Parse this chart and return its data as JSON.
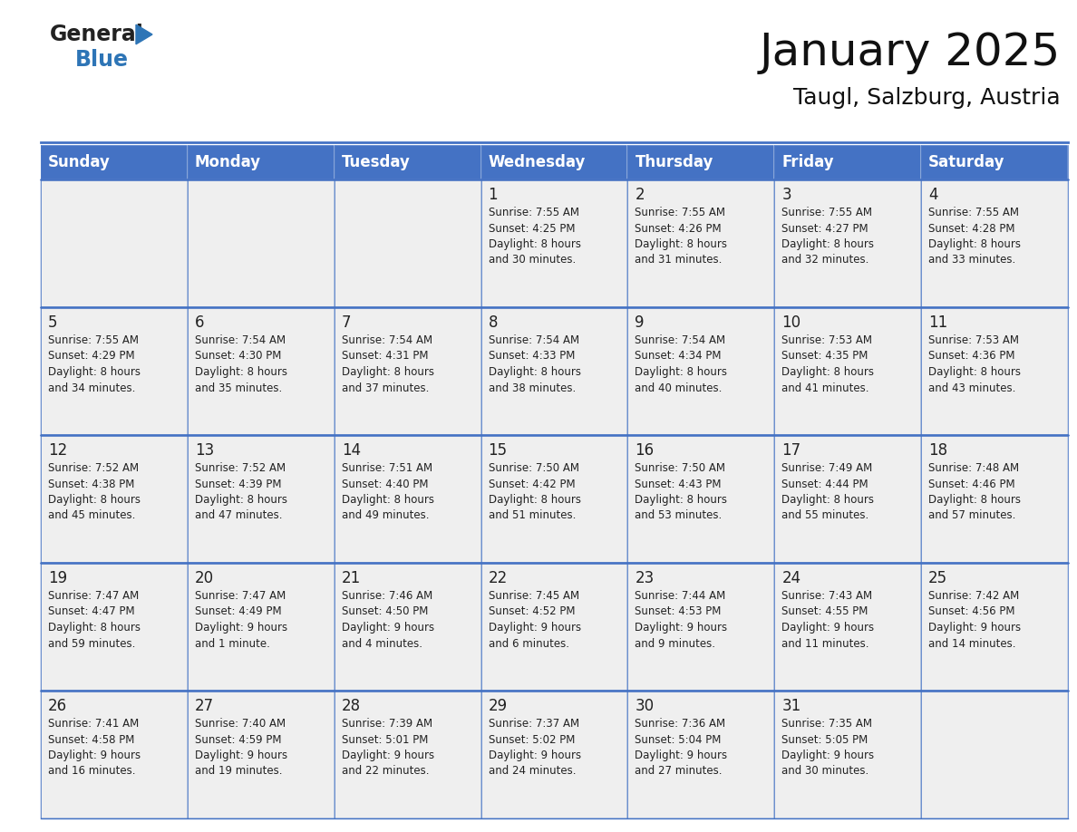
{
  "title": "January 2025",
  "subtitle": "Taugl, Salzburg, Austria",
  "header_bg_color": "#4472C4",
  "header_text_color": "#FFFFFF",
  "header_font_size": 12,
  "title_font_size": 36,
  "subtitle_font_size": 18,
  "day_headers": [
    "Sunday",
    "Monday",
    "Tuesday",
    "Wednesday",
    "Thursday",
    "Friday",
    "Saturday"
  ],
  "cell_bg_color": "#EFEFEF",
  "grid_color": "#4472C4",
  "day_num_color": "#222222",
  "text_color": "#222222",
  "figure_bg": "#FFFFFF",
  "logo_color_general": "#222222",
  "logo_color_blue": "#2E75B6",
  "logo_triangle_color": "#2E75B6",
  "days": [
    {
      "date": "",
      "info": ""
    },
    {
      "date": "",
      "info": ""
    },
    {
      "date": "",
      "info": ""
    },
    {
      "date": "1",
      "info": "Sunrise: 7:55 AM\nSunset: 4:25 PM\nDaylight: 8 hours\nand 30 minutes."
    },
    {
      "date": "2",
      "info": "Sunrise: 7:55 AM\nSunset: 4:26 PM\nDaylight: 8 hours\nand 31 minutes."
    },
    {
      "date": "3",
      "info": "Sunrise: 7:55 AM\nSunset: 4:27 PM\nDaylight: 8 hours\nand 32 minutes."
    },
    {
      "date": "4",
      "info": "Sunrise: 7:55 AM\nSunset: 4:28 PM\nDaylight: 8 hours\nand 33 minutes."
    },
    {
      "date": "5",
      "info": "Sunrise: 7:55 AM\nSunset: 4:29 PM\nDaylight: 8 hours\nand 34 minutes."
    },
    {
      "date": "6",
      "info": "Sunrise: 7:54 AM\nSunset: 4:30 PM\nDaylight: 8 hours\nand 35 minutes."
    },
    {
      "date": "7",
      "info": "Sunrise: 7:54 AM\nSunset: 4:31 PM\nDaylight: 8 hours\nand 37 minutes."
    },
    {
      "date": "8",
      "info": "Sunrise: 7:54 AM\nSunset: 4:33 PM\nDaylight: 8 hours\nand 38 minutes."
    },
    {
      "date": "9",
      "info": "Sunrise: 7:54 AM\nSunset: 4:34 PM\nDaylight: 8 hours\nand 40 minutes."
    },
    {
      "date": "10",
      "info": "Sunrise: 7:53 AM\nSunset: 4:35 PM\nDaylight: 8 hours\nand 41 minutes."
    },
    {
      "date": "11",
      "info": "Sunrise: 7:53 AM\nSunset: 4:36 PM\nDaylight: 8 hours\nand 43 minutes."
    },
    {
      "date": "12",
      "info": "Sunrise: 7:52 AM\nSunset: 4:38 PM\nDaylight: 8 hours\nand 45 minutes."
    },
    {
      "date": "13",
      "info": "Sunrise: 7:52 AM\nSunset: 4:39 PM\nDaylight: 8 hours\nand 47 minutes."
    },
    {
      "date": "14",
      "info": "Sunrise: 7:51 AM\nSunset: 4:40 PM\nDaylight: 8 hours\nand 49 minutes."
    },
    {
      "date": "15",
      "info": "Sunrise: 7:50 AM\nSunset: 4:42 PM\nDaylight: 8 hours\nand 51 minutes."
    },
    {
      "date": "16",
      "info": "Sunrise: 7:50 AM\nSunset: 4:43 PM\nDaylight: 8 hours\nand 53 minutes."
    },
    {
      "date": "17",
      "info": "Sunrise: 7:49 AM\nSunset: 4:44 PM\nDaylight: 8 hours\nand 55 minutes."
    },
    {
      "date": "18",
      "info": "Sunrise: 7:48 AM\nSunset: 4:46 PM\nDaylight: 8 hours\nand 57 minutes."
    },
    {
      "date": "19",
      "info": "Sunrise: 7:47 AM\nSunset: 4:47 PM\nDaylight: 8 hours\nand 59 minutes."
    },
    {
      "date": "20",
      "info": "Sunrise: 7:47 AM\nSunset: 4:49 PM\nDaylight: 9 hours\nand 1 minute."
    },
    {
      "date": "21",
      "info": "Sunrise: 7:46 AM\nSunset: 4:50 PM\nDaylight: 9 hours\nand 4 minutes."
    },
    {
      "date": "22",
      "info": "Sunrise: 7:45 AM\nSunset: 4:52 PM\nDaylight: 9 hours\nand 6 minutes."
    },
    {
      "date": "23",
      "info": "Sunrise: 7:44 AM\nSunset: 4:53 PM\nDaylight: 9 hours\nand 9 minutes."
    },
    {
      "date": "24",
      "info": "Sunrise: 7:43 AM\nSunset: 4:55 PM\nDaylight: 9 hours\nand 11 minutes."
    },
    {
      "date": "25",
      "info": "Sunrise: 7:42 AM\nSunset: 4:56 PM\nDaylight: 9 hours\nand 14 minutes."
    },
    {
      "date": "26",
      "info": "Sunrise: 7:41 AM\nSunset: 4:58 PM\nDaylight: 9 hours\nand 16 minutes."
    },
    {
      "date": "27",
      "info": "Sunrise: 7:40 AM\nSunset: 4:59 PM\nDaylight: 9 hours\nand 19 minutes."
    },
    {
      "date": "28",
      "info": "Sunrise: 7:39 AM\nSunset: 5:01 PM\nDaylight: 9 hours\nand 22 minutes."
    },
    {
      "date": "29",
      "info": "Sunrise: 7:37 AM\nSunset: 5:02 PM\nDaylight: 9 hours\nand 24 minutes."
    },
    {
      "date": "30",
      "info": "Sunrise: 7:36 AM\nSunset: 5:04 PM\nDaylight: 9 hours\nand 27 minutes."
    },
    {
      "date": "31",
      "info": "Sunrise: 7:35 AM\nSunset: 5:05 PM\nDaylight: 9 hours\nand 30 minutes."
    },
    {
      "date": "",
      "info": ""
    }
  ]
}
